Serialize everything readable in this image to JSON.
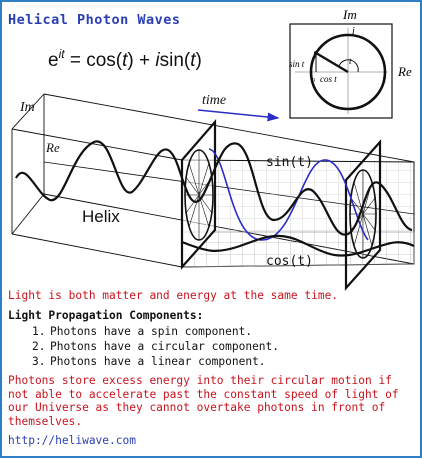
{
  "title": "Helical Photon Waves",
  "formula": {
    "lhs_base": "e",
    "lhs_exp": "it",
    "rhs_part1": " = cos(",
    "rhs_t1": "t",
    "rhs_part2": ") + ",
    "rhs_i": "i",
    "rhs_part3": "sin(",
    "rhs_t2": "t",
    "rhs_part4": ")"
  },
  "unit_circle": {
    "im_label": "Im",
    "re_label": "Re",
    "i_label": "i",
    "sin_label": "sin t",
    "cos_label": "cos t",
    "angle_label": "t",
    "origin_label": "0",
    "one_label": "1"
  },
  "helix_diagram": {
    "im_label": "Im",
    "re_label": "Re",
    "time_label": "time",
    "helix_label": "Helix",
    "sin_label": "sin(t)",
    "cos_label": "cos(t)"
  },
  "statement": "Light is both matter and energy at the same time.",
  "components_heading": "Light Propagation Components:",
  "components": [
    {
      "num": "1.",
      "text": "Photons have a spin component."
    },
    {
      "num": "2.",
      "text": "Photons have a circular component."
    },
    {
      "num": "3.",
      "text": "Photons have a linear component."
    }
  ],
  "explanation": "Photons store excess energy into their circular motion if not able to accelerate past the constant speed of light of our Universe as they cannot overtake photons in front of themselves.",
  "website": "http://heliwave.com",
  "colors": {
    "frame": "#2f7fc4",
    "title": "#2a3fb5",
    "red_text": "#c8141e",
    "link": "#2a3fb5",
    "projection_wave": "#2b2ec6"
  }
}
